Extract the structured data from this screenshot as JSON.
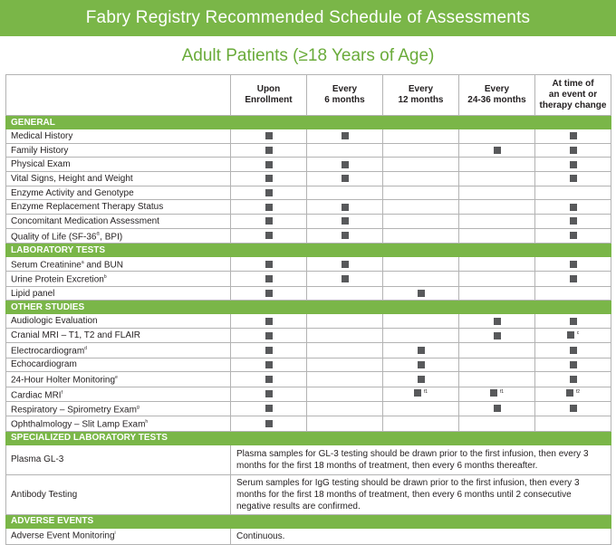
{
  "title": "Fabry Registry Recommended Schedule of Assessments",
  "subtitle": "Adult Patients (≥18 Years of Age)",
  "colors": {
    "accent": "#7ab648",
    "mark": "#58595b"
  },
  "columns": [
    "Upon\nEnrollment",
    "Every\n6 months",
    "Every\n12 months",
    "Every\n24-36 months",
    "At time of\nan event or\ntherapy change"
  ],
  "sections": [
    {
      "name": "GENERAL",
      "rows": [
        {
          "label": "Medical History",
          "sup": "",
          "marks": [
            1,
            1,
            0,
            0,
            1
          ],
          "fn": [
            "",
            "",
            "",
            "",
            ""
          ]
        },
        {
          "label": "Family History",
          "sup": "",
          "marks": [
            1,
            0,
            0,
            1,
            1
          ],
          "fn": [
            "",
            "",
            "",
            "",
            ""
          ]
        },
        {
          "label": "Physical Exam",
          "sup": "",
          "marks": [
            1,
            1,
            0,
            0,
            1
          ],
          "fn": [
            "",
            "",
            "",
            "",
            ""
          ]
        },
        {
          "label": "Vital Signs, Height and Weight",
          "sup": "",
          "marks": [
            1,
            1,
            0,
            0,
            1
          ],
          "fn": [
            "",
            "",
            "",
            "",
            ""
          ]
        },
        {
          "label": "Enzyme Activity and Genotype",
          "sup": "",
          "marks": [
            1,
            0,
            0,
            0,
            0
          ],
          "fn": [
            "",
            "",
            "",
            "",
            ""
          ]
        },
        {
          "label": "Enzyme Replacement Therapy Status",
          "sup": "",
          "marks": [
            1,
            1,
            0,
            0,
            1
          ],
          "fn": [
            "",
            "",
            "",
            "",
            ""
          ]
        },
        {
          "label": "Concomitant Medication Assessment",
          "sup": "",
          "marks": [
            1,
            1,
            0,
            0,
            1
          ],
          "fn": [
            "",
            "",
            "",
            "",
            ""
          ]
        },
        {
          "label": "Quality of Life (SF-36",
          "sup": "®",
          "suffix": ", BPI)",
          "marks": [
            1,
            1,
            0,
            0,
            1
          ],
          "fn": [
            "",
            "",
            "",
            "",
            ""
          ]
        }
      ]
    },
    {
      "name": "LABORATORY TESTS",
      "rows": [
        {
          "label": "Serum Creatinine",
          "sup": "a",
          "suffix": " and BUN",
          "marks": [
            1,
            1,
            0,
            0,
            1
          ],
          "fn": [
            "",
            "",
            "",
            "",
            ""
          ]
        },
        {
          "label": "Urine Protein Excretion",
          "sup": "b",
          "suffix": "",
          "marks": [
            1,
            1,
            0,
            0,
            1
          ],
          "fn": [
            "",
            "",
            "",
            "",
            ""
          ]
        },
        {
          "label": "Lipid panel",
          "sup": "",
          "marks": [
            1,
            0,
            1,
            0,
            0
          ],
          "fn": [
            "",
            "",
            "",
            "",
            ""
          ]
        }
      ]
    },
    {
      "name": "OTHER STUDIES",
      "rows": [
        {
          "label": "Audiologic Evaluation",
          "sup": "",
          "marks": [
            1,
            0,
            0,
            1,
            1
          ],
          "fn": [
            "",
            "",
            "",
            "",
            ""
          ]
        },
        {
          "label": "Cranial MRI – T1, T2 and FLAIR",
          "sup": "",
          "marks": [
            1,
            0,
            0,
            1,
            1
          ],
          "fn": [
            "",
            "",
            "",
            "",
            "c"
          ]
        },
        {
          "label": "Electrocardiogram",
          "sup": "d",
          "suffix": "",
          "marks": [
            1,
            0,
            1,
            0,
            1
          ],
          "fn": [
            "",
            "",
            "",
            "",
            ""
          ]
        },
        {
          "label": "Echocardiogram",
          "sup": "",
          "marks": [
            1,
            0,
            1,
            0,
            1
          ],
          "fn": [
            "",
            "",
            "",
            "",
            ""
          ]
        },
        {
          "label": "24-Hour Holter Monitoring",
          "sup": "e",
          "suffix": "",
          "marks": [
            1,
            0,
            1,
            0,
            1
          ],
          "fn": [
            "",
            "",
            "",
            "",
            ""
          ]
        },
        {
          "label": "Cardiac MRI",
          "sup": "f",
          "suffix": "",
          "marks": [
            1,
            0,
            1,
            1,
            1
          ],
          "fn": [
            "",
            "",
            "f1",
            "f1",
            "f2"
          ]
        },
        {
          "label": "Respiratory – Spirometry Exam",
          "sup": "g",
          "suffix": "",
          "marks": [
            1,
            0,
            0,
            1,
            1
          ],
          "fn": [
            "",
            "",
            "",
            "",
            ""
          ]
        },
        {
          "label": "Ophthalmology – Slit Lamp Exam",
          "sup": "h",
          "suffix": "",
          "marks": [
            1,
            0,
            0,
            0,
            0
          ],
          "fn": [
            "",
            "",
            "",
            "",
            ""
          ]
        }
      ]
    }
  ],
  "specialized": {
    "name": "SPECIALIZED LABORATORY TESTS",
    "rows": [
      {
        "label": "Plasma GL-3",
        "note": "Plasma samples for GL-3 testing should be drawn prior to the first infusion, then every 3 months for the first 18 months of treatment, then every 6 months thereafter."
      },
      {
        "label": "Antibody Testing",
        "note": "Serum samples for IgG testing should be drawn prior to the first infusion, then every 3 months for the first 18 months of treatment, then every 6 months until 2 consecutive negative results are confirmed."
      }
    ]
  },
  "adverse": {
    "name": "ADVERSE EVENTS",
    "label": "Adverse Event Monitoring",
    "sup": "i",
    "note": "Continuous."
  }
}
